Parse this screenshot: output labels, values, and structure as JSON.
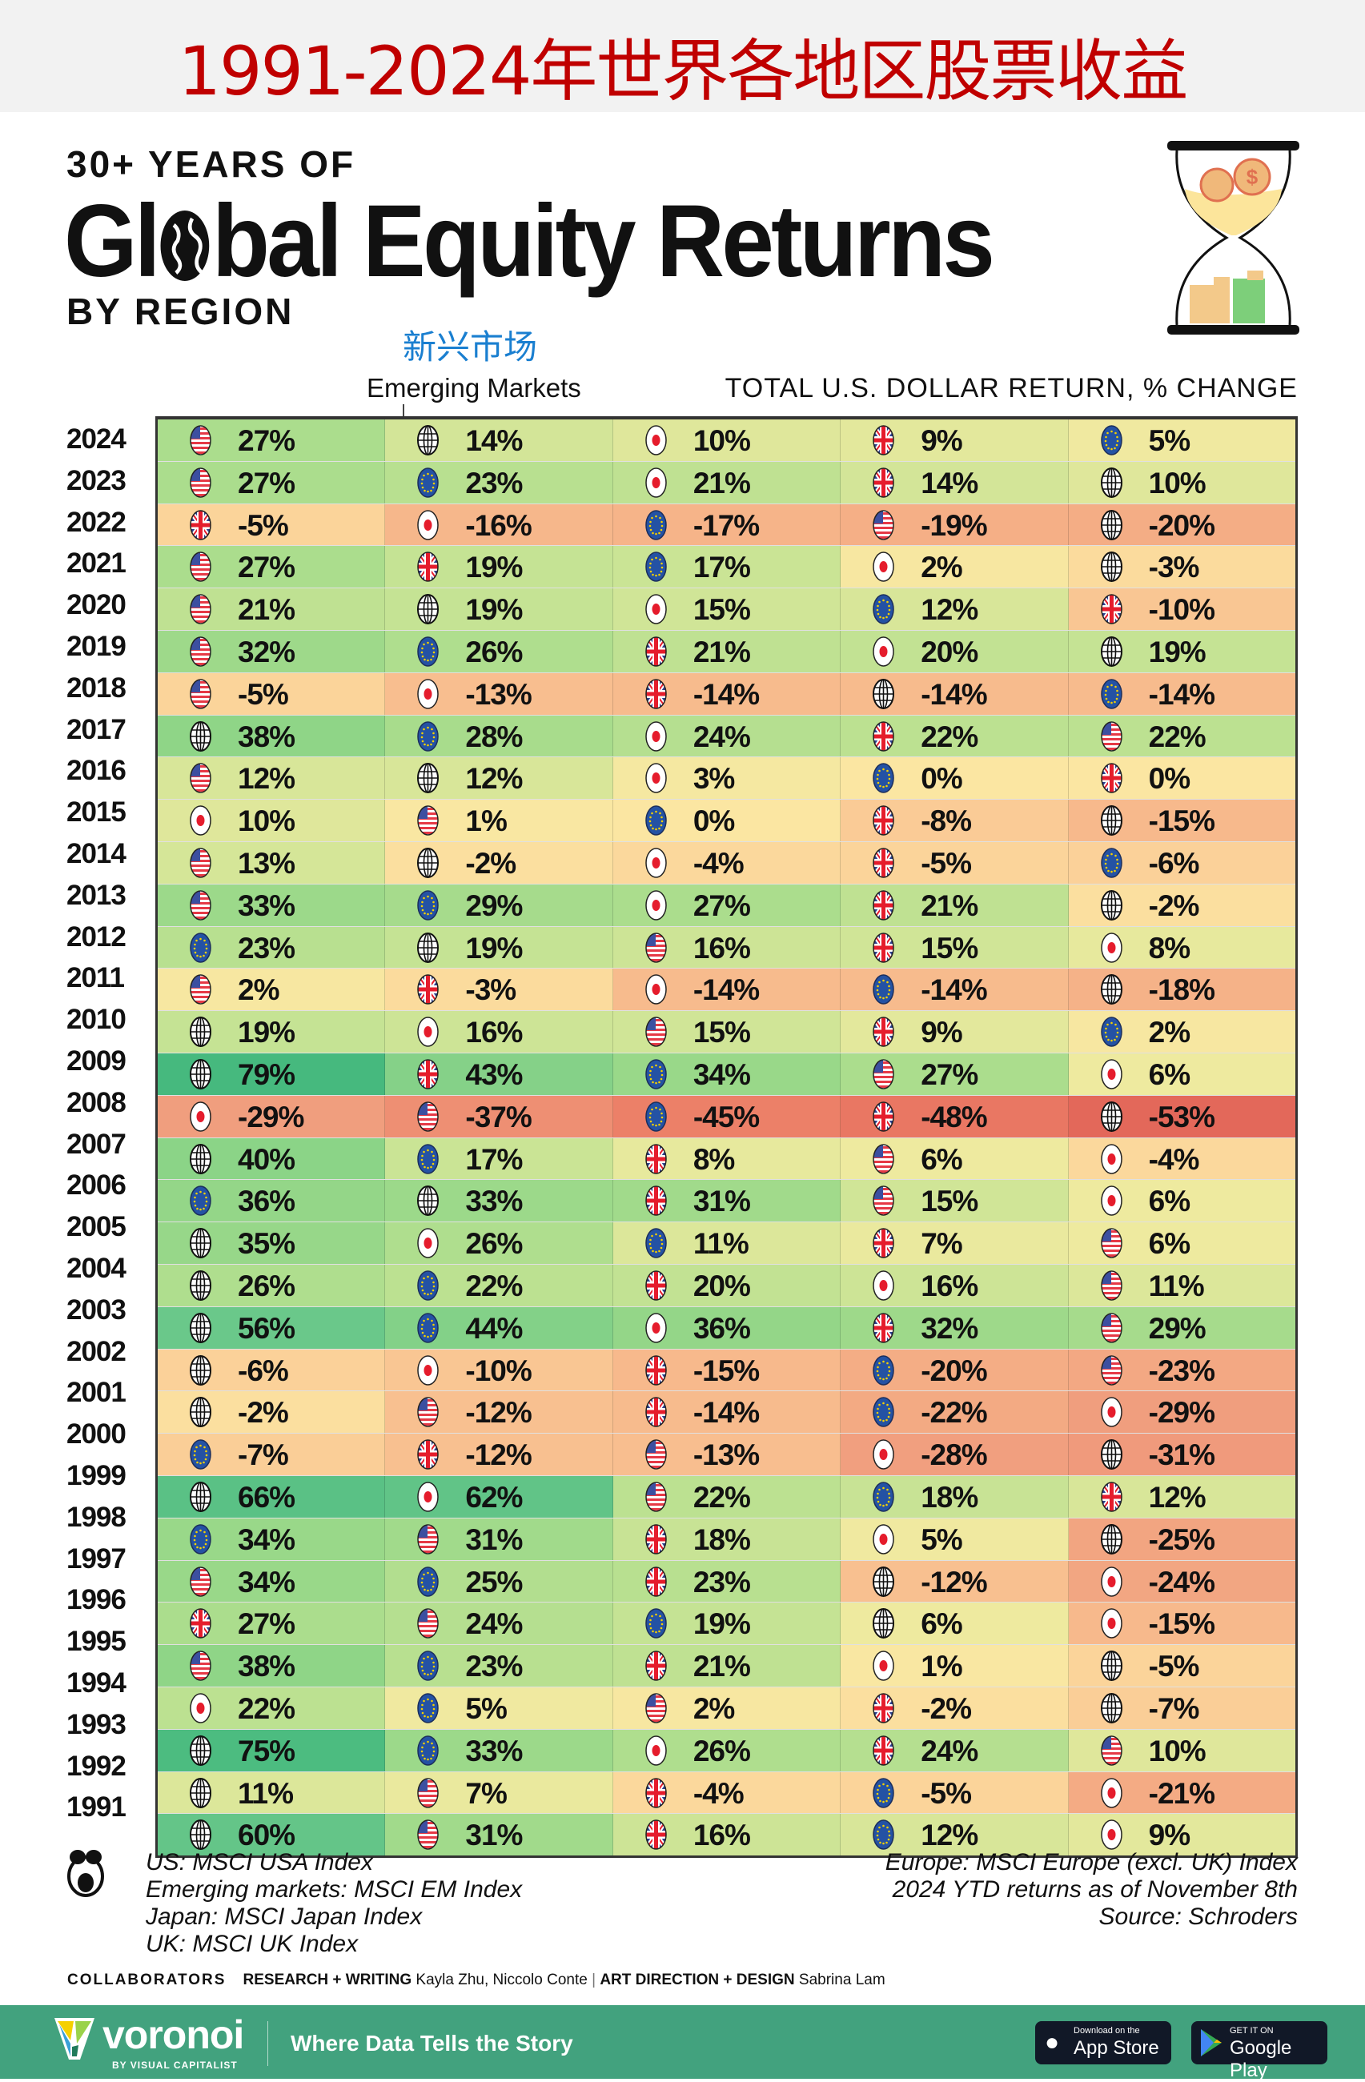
{
  "header": {
    "chinese_title": "1991-2024年世界各地区股票收益",
    "kicker": "30+ YEARS OF",
    "headline": "Global Equity Returns",
    "headline_pre": "Gl",
    "headline_post": "bal Equity Returns",
    "byline": "BY REGION",
    "em_chinese": "新兴市场",
    "em_label": "Emerging Markets",
    "subtitle": "TOTAL U.S. DOLLAR RETURN, % CHANGE"
  },
  "colors": {
    "title_red": "#c00000",
    "annotation_blue": "#1a7fd0",
    "footer_green": "#42a27e",
    "best": "#46b97e",
    "worst": "#e3685a"
  },
  "icons": {
    "US": "us-flag-icon",
    "EM": "globe-icon",
    "JP": "japan-flag-icon",
    "UK": "uk-flag-icon",
    "EU": "eu-flag-icon"
  },
  "chart_data": {
    "type": "heatmap",
    "title": "Global Equity Returns",
    "subtitle": "TOTAL U.S. DOLLAR RETURN, % CHANGE",
    "unit": "%",
    "layout": "each row ranked best to worst, left to right",
    "rows": [
      {
        "year": "2024",
        "cells": [
          [
            "US",
            27
          ],
          [
            "EM",
            14
          ],
          [
            "JP",
            10
          ],
          [
            "UK",
            9
          ],
          [
            "EU",
            5
          ]
        ]
      },
      {
        "year": "2023",
        "cells": [
          [
            "US",
            27
          ],
          [
            "EU",
            23
          ],
          [
            "JP",
            21
          ],
          [
            "UK",
            14
          ],
          [
            "EM",
            10
          ]
        ]
      },
      {
        "year": "2022",
        "cells": [
          [
            "UK",
            -5
          ],
          [
            "JP",
            -16
          ],
          [
            "EU",
            -17
          ],
          [
            "US",
            -19
          ],
          [
            "EM",
            -20
          ]
        ]
      },
      {
        "year": "2021",
        "cells": [
          [
            "US",
            27
          ],
          [
            "UK",
            19
          ],
          [
            "EU",
            17
          ],
          [
            "JP",
            2
          ],
          [
            "EM",
            -3
          ]
        ]
      },
      {
        "year": "2020",
        "cells": [
          [
            "US",
            21
          ],
          [
            "EM",
            19
          ],
          [
            "JP",
            15
          ],
          [
            "EU",
            12
          ],
          [
            "UK",
            -10
          ]
        ]
      },
      {
        "year": "2019",
        "cells": [
          [
            "US",
            32
          ],
          [
            "EU",
            26
          ],
          [
            "UK",
            21
          ],
          [
            "JP",
            20
          ],
          [
            "EM",
            19
          ]
        ]
      },
      {
        "year": "2018",
        "cells": [
          [
            "US",
            -5
          ],
          [
            "JP",
            -13
          ],
          [
            "UK",
            -14
          ],
          [
            "EM",
            -14
          ],
          [
            "EU",
            -14
          ]
        ]
      },
      {
        "year": "2017",
        "cells": [
          [
            "EM",
            38
          ],
          [
            "EU",
            28
          ],
          [
            "JP",
            24
          ],
          [
            "UK",
            22
          ],
          [
            "US",
            22
          ]
        ]
      },
      {
        "year": "2016",
        "cells": [
          [
            "US",
            12
          ],
          [
            "EM",
            12
          ],
          [
            "JP",
            3
          ],
          [
            "EU",
            0
          ],
          [
            "UK",
            0
          ]
        ]
      },
      {
        "year": "2015",
        "cells": [
          [
            "JP",
            10
          ],
          [
            "US",
            1
          ],
          [
            "EU",
            0
          ],
          [
            "UK",
            -8
          ],
          [
            "EM",
            -15
          ]
        ]
      },
      {
        "year": "2014",
        "cells": [
          [
            "US",
            13
          ],
          [
            "EM",
            -2
          ],
          [
            "JP",
            -4
          ],
          [
            "UK",
            -5
          ],
          [
            "EU",
            -6
          ]
        ]
      },
      {
        "year": "2013",
        "cells": [
          [
            "US",
            33
          ],
          [
            "EU",
            29
          ],
          [
            "JP",
            27
          ],
          [
            "UK",
            21
          ],
          [
            "EM",
            -2
          ]
        ]
      },
      {
        "year": "2012",
        "cells": [
          [
            "EU",
            23
          ],
          [
            "EM",
            19
          ],
          [
            "US",
            16
          ],
          [
            "UK",
            15
          ],
          [
            "JP",
            8
          ]
        ]
      },
      {
        "year": "2011",
        "cells": [
          [
            "US",
            2
          ],
          [
            "UK",
            -3
          ],
          [
            "JP",
            -14
          ],
          [
            "EU",
            -14
          ],
          [
            "EM",
            -18
          ]
        ]
      },
      {
        "year": "2010",
        "cells": [
          [
            "EM",
            19
          ],
          [
            "JP",
            16
          ],
          [
            "US",
            15
          ],
          [
            "UK",
            9
          ],
          [
            "EU",
            2
          ]
        ]
      },
      {
        "year": "2009",
        "cells": [
          [
            "EM",
            79
          ],
          [
            "UK",
            43
          ],
          [
            "EU",
            34
          ],
          [
            "US",
            27
          ],
          [
            "JP",
            6
          ]
        ]
      },
      {
        "year": "2008",
        "cells": [
          [
            "JP",
            -29
          ],
          [
            "US",
            -37
          ],
          [
            "EU",
            -45
          ],
          [
            "UK",
            -48
          ],
          [
            "EM",
            -53
          ]
        ]
      },
      {
        "year": "2007",
        "cells": [
          [
            "EM",
            40
          ],
          [
            "EU",
            17
          ],
          [
            "UK",
            8
          ],
          [
            "US",
            6
          ],
          [
            "JP",
            -4
          ]
        ]
      },
      {
        "year": "2006",
        "cells": [
          [
            "EU",
            36
          ],
          [
            "EM",
            33
          ],
          [
            "UK",
            31
          ],
          [
            "US",
            15
          ],
          [
            "JP",
            6
          ]
        ]
      },
      {
        "year": "2005",
        "cells": [
          [
            "EM",
            35
          ],
          [
            "JP",
            26
          ],
          [
            "EU",
            11
          ],
          [
            "UK",
            7
          ],
          [
            "US",
            6
          ]
        ]
      },
      {
        "year": "2004",
        "cells": [
          [
            "EM",
            26
          ],
          [
            "EU",
            22
          ],
          [
            "UK",
            20
          ],
          [
            "JP",
            16
          ],
          [
            "US",
            11
          ]
        ]
      },
      {
        "year": "2003",
        "cells": [
          [
            "EM",
            56
          ],
          [
            "EU",
            44
          ],
          [
            "JP",
            36
          ],
          [
            "UK",
            32
          ],
          [
            "US",
            29
          ]
        ]
      },
      {
        "year": "2002",
        "cells": [
          [
            "EM",
            -6
          ],
          [
            "JP",
            -10
          ],
          [
            "UK",
            -15
          ],
          [
            "EU",
            -20
          ],
          [
            "US",
            -23
          ]
        ]
      },
      {
        "year": "2001",
        "cells": [
          [
            "EM",
            -2
          ],
          [
            "US",
            -12
          ],
          [
            "UK",
            -14
          ],
          [
            "EU",
            -22
          ],
          [
            "JP",
            -29
          ]
        ]
      },
      {
        "year": "2000",
        "cells": [
          [
            "EU",
            -7
          ],
          [
            "UK",
            -12
          ],
          [
            "US",
            -13
          ],
          [
            "JP",
            -28
          ],
          [
            "EM",
            -31
          ]
        ]
      },
      {
        "year": "1999",
        "cells": [
          [
            "EM",
            66
          ],
          [
            "JP",
            62
          ],
          [
            "US",
            22
          ],
          [
            "EU",
            18
          ],
          [
            "UK",
            12
          ]
        ]
      },
      {
        "year": "1998",
        "cells": [
          [
            "EU",
            34
          ],
          [
            "US",
            31
          ],
          [
            "UK",
            18
          ],
          [
            "JP",
            5
          ],
          [
            "EM",
            -25
          ]
        ]
      },
      {
        "year": "1997",
        "cells": [
          [
            "US",
            34
          ],
          [
            "EU",
            25
          ],
          [
            "UK",
            23
          ],
          [
            "EM",
            -12
          ],
          [
            "JP",
            -24
          ]
        ]
      },
      {
        "year": "1996",
        "cells": [
          [
            "UK",
            27
          ],
          [
            "US",
            24
          ],
          [
            "EU",
            19
          ],
          [
            "EM",
            6
          ],
          [
            "JP",
            -15
          ]
        ]
      },
      {
        "year": "1995",
        "cells": [
          [
            "US",
            38
          ],
          [
            "EU",
            23
          ],
          [
            "UK",
            21
          ],
          [
            "JP",
            1
          ],
          [
            "EM",
            -5
          ]
        ]
      },
      {
        "year": "1994",
        "cells": [
          [
            "JP",
            22
          ],
          [
            "EU",
            5
          ],
          [
            "US",
            2
          ],
          [
            "UK",
            -2
          ],
          [
            "EM",
            -7
          ]
        ]
      },
      {
        "year": "1993",
        "cells": [
          [
            "EM",
            75
          ],
          [
            "EU",
            33
          ],
          [
            "JP",
            26
          ],
          [
            "UK",
            24
          ],
          [
            "US",
            10
          ]
        ]
      },
      {
        "year": "1992",
        "cells": [
          [
            "EM",
            11
          ],
          [
            "US",
            7
          ],
          [
            "UK",
            -4
          ],
          [
            "EU",
            -5
          ],
          [
            "JP",
            -21
          ]
        ]
      },
      {
        "year": "1991",
        "cells": [
          [
            "EM",
            60
          ],
          [
            "US",
            31
          ],
          [
            "UK",
            16
          ],
          [
            "EU",
            12
          ],
          [
            "JP",
            9
          ]
        ]
      }
    ]
  },
  "notes": {
    "left": [
      "US: MSCI USA Index",
      "Emerging markets: MSCI EM Index",
      "Japan: MSCI Japan Index",
      "UK: MSCI UK Index"
    ],
    "right": [
      "Europe: MSCI Europe (excl. UK) Index",
      "2024 YTD returns as of November 8th",
      "Source: Schroders"
    ]
  },
  "collaborators": {
    "label": "COLLABORATORS",
    "research_label": "RESEARCH + WRITING",
    "research_names": "Kayla Zhu, Niccolo Conte",
    "separator": "|",
    "design_label": "ART DIRECTION + DESIGN",
    "design_names": "Sabrina Lam"
  },
  "footer": {
    "brand": "voronoi",
    "brand_sub": "BY VISUAL CAPITALIST",
    "tagline": "Where Data Tells the Story",
    "app_store_small": "Download on the",
    "app_store": "App Store",
    "google_small": "GET IT ON",
    "google": "Google Play"
  }
}
